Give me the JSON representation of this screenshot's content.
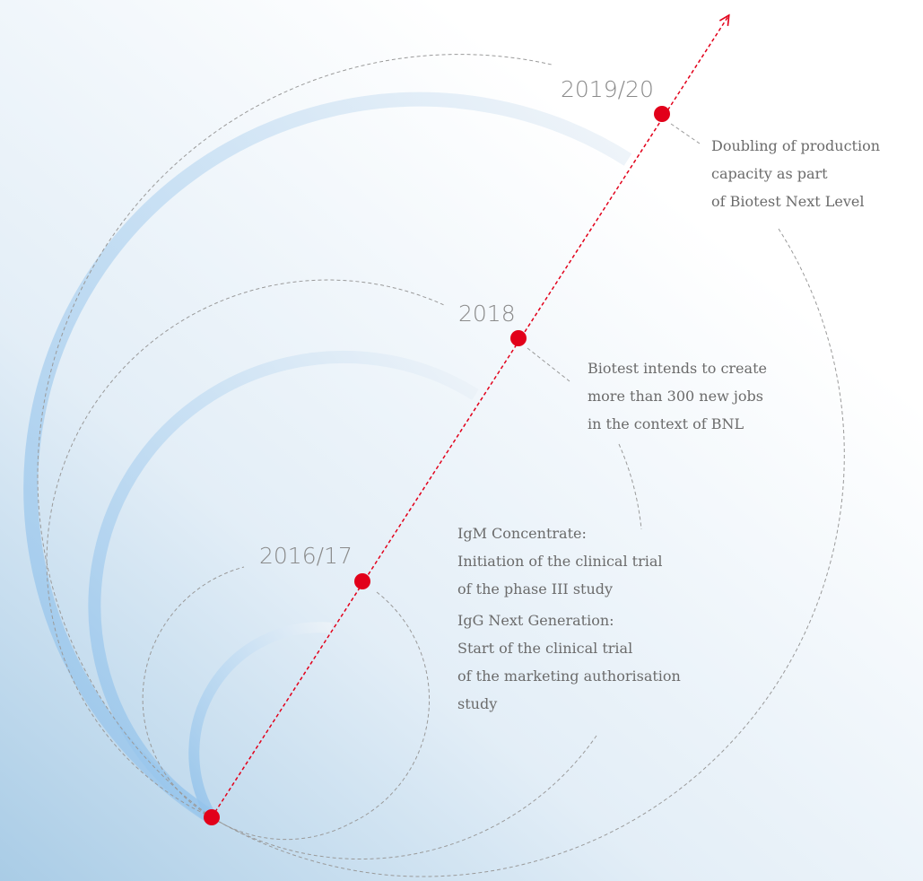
{
  "milestones": [
    {
      "year": "2016/17",
      "notes": [
        [
          "IgM Concentrate:",
          "Initiation of the clinical trial",
          "of the phase III study"
        ],
        [
          "IgG Next Generation:",
          "Start of the clinical trial",
          "of the marketing authorisation",
          "study"
        ]
      ]
    },
    {
      "year": "2018",
      "notes": [
        [
          "Biotest intends to create",
          "more than 300 new jobs",
          "in the context of BNL"
        ]
      ]
    },
    {
      "year": "2019/20",
      "notes": [
        [
          "Doubling of production",
          "capacity as part",
          "of Biotest Next Level"
        ]
      ]
    }
  ]
}
